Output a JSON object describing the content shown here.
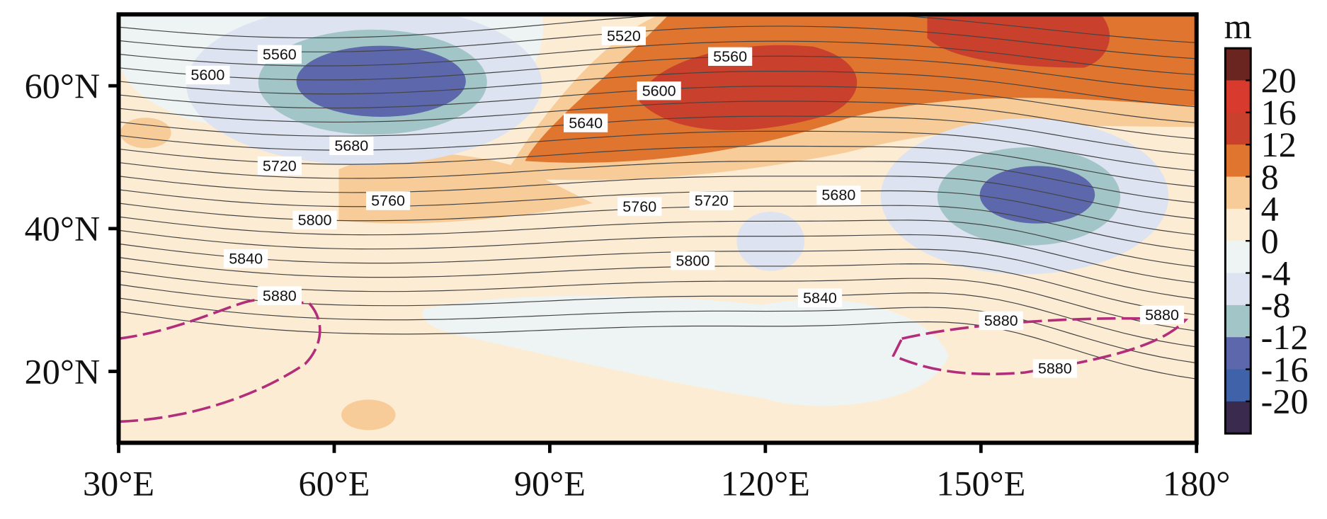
{
  "map": {
    "xlim": [
      30,
      180
    ],
    "ylim": [
      10,
      70
    ],
    "xticks": [
      {
        "value": 30,
        "label": "30°E"
      },
      {
        "value": 60,
        "label": "60°E"
      },
      {
        "value": 90,
        "label": "90°E"
      },
      {
        "value": 120,
        "label": "120°E"
      },
      {
        "value": 150,
        "label": "150°E"
      },
      {
        "value": 180,
        "label": "180°"
      }
    ],
    "yticks": [
      {
        "value": 20,
        "label": "20°N"
      },
      {
        "value": 40,
        "label": "40°N"
      },
      {
        "value": 60,
        "label": "60°N"
      }
    ],
    "colorbar": {
      "unit": "m",
      "ticks": [
        20,
        16,
        12,
        8,
        4,
        0,
        -4,
        -8,
        -12,
        -16,
        -20
      ],
      "colors": [
        "#6b2520",
        "#d83a2e",
        "#c9402c",
        "#e0752f",
        "#f8cc98",
        "#fdecd4",
        "#eef4f3",
        "#dde3f0",
        "#a2c6c8",
        "#5d67ac",
        "#3f62a8",
        "#3a2a4d"
      ]
    },
    "contours": [
      {
        "value": 5520,
        "lon": 100.3,
        "lat": 67.0
      },
      {
        "value": 5560,
        "lon": 52.4,
        "lat": 64.4
      },
      {
        "value": 5560,
        "lon": 115.1,
        "lat": 64.1
      },
      {
        "value": 5600,
        "lon": 42.4,
        "lat": 61.5
      },
      {
        "value": 5600,
        "lon": 105.2,
        "lat": 59.3
      },
      {
        "value": 5640,
        "lon": 95.0,
        "lat": 54.8
      },
      {
        "value": 5680,
        "lon": 62.4,
        "lat": 51.6
      },
      {
        "value": 5680,
        "lon": 130.2,
        "lat": 44.7
      },
      {
        "value": 5720,
        "lon": 52.4,
        "lat": 48.8
      },
      {
        "value": 5720,
        "lon": 112.5,
        "lat": 43.9
      },
      {
        "value": 5760,
        "lon": 67.5,
        "lat": 43.9
      },
      {
        "value": 5760,
        "lon": 102.5,
        "lat": 43.1
      },
      {
        "value": 5800,
        "lon": 57.3,
        "lat": 41.2
      },
      {
        "value": 5800,
        "lon": 109.9,
        "lat": 35.5
      },
      {
        "value": 5840,
        "lon": 47.7,
        "lat": 35.8
      },
      {
        "value": 5840,
        "lon": 127.6,
        "lat": 30.3
      },
      {
        "value": 5880,
        "lon": 52.4,
        "lat": 30.6
      },
      {
        "value": 5880,
        "lon": 152.8,
        "lat": 27.1
      },
      {
        "value": 5880,
        "lon": 175.2,
        "lat": 27.9
      },
      {
        "value": 5880,
        "lon": 160.3,
        "lat": 20.4
      }
    ]
  }
}
